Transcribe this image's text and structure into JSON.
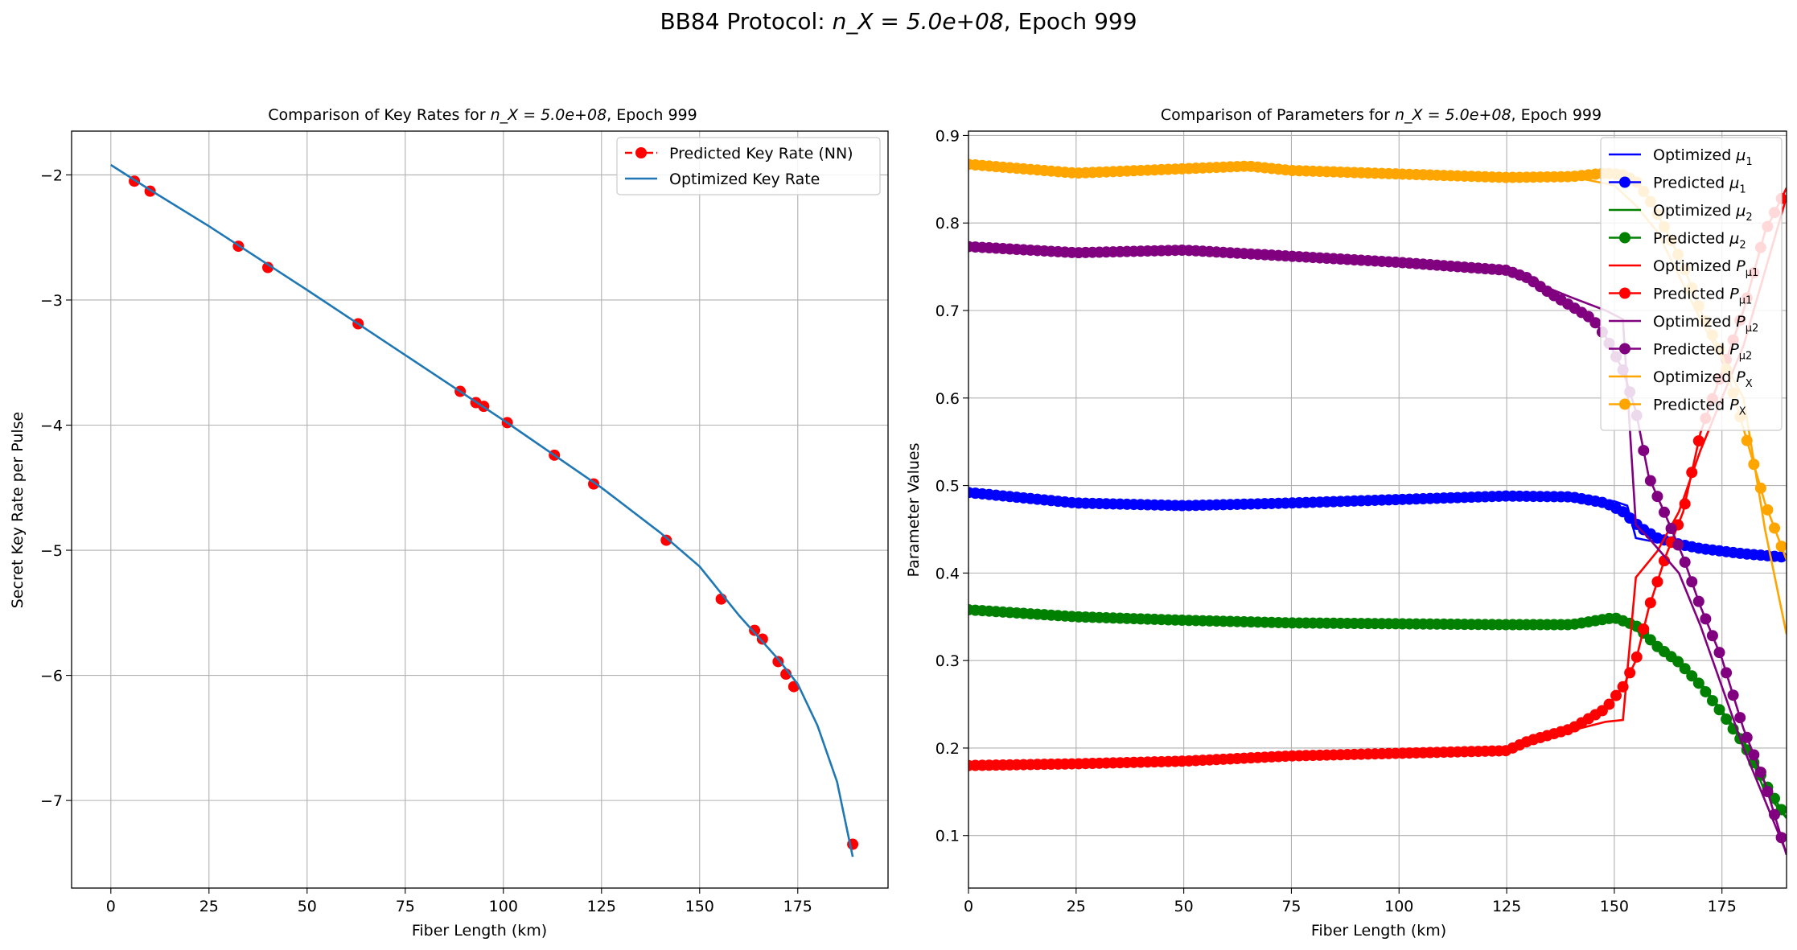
{
  "figure": {
    "suptitle_prefix": "BB84 Protocol: ",
    "suptitle_math": "n_X = 5.0e+08",
    "suptitle_suffix": ", Epoch 999"
  },
  "chart_data": [
    {
      "type": "line",
      "title_prefix": "Comparison of Key Rates for ",
      "title_math": "n_X = 5.0e+08",
      "title_suffix": ", Epoch 999",
      "xlabel": "Fiber Length (km)",
      "ylabel": "Secret Key Rate per Pulse",
      "xlim": [
        -10,
        198
      ],
      "ylim": [
        -7.7,
        -1.65
      ],
      "xticks": [
        0,
        25,
        50,
        75,
        100,
        125,
        150,
        175
      ],
      "yticks": [
        -7,
        -6,
        -5,
        -4,
        -3,
        -2
      ],
      "ytick_labels": [
        "−7",
        "−6",
        "−5",
        "−4",
        "−3",
        "−2"
      ],
      "grid": true,
      "legend_position": "top-right",
      "series": [
        {
          "name": "Predicted Key Rate (NN)",
          "style": "dashed-markers",
          "color": "#ff0000",
          "x": [
            6,
            10,
            32.5,
            40,
            63,
            89,
            93,
            95,
            101,
            113,
            123,
            141.5,
            155.5,
            164,
            166,
            170,
            172,
            174,
            189
          ],
          "y": [
            -2.05,
            -2.13,
            -2.57,
            -2.74,
            -3.19,
            -3.73,
            -3.82,
            -3.85,
            -3.98,
            -4.24,
            -4.47,
            -4.92,
            -5.39,
            -5.64,
            -5.71,
            -5.89,
            -5.99,
            -6.09,
            -7.35
          ]
        },
        {
          "name": "Optimized Key Rate",
          "style": "line",
          "color": "#1f77b4",
          "x": [
            0,
            10,
            25,
            50,
            75,
            100,
            125,
            140,
            150,
            160,
            170,
            175,
            180,
            185,
            188,
            189
          ],
          "y": [
            -1.92,
            -2.12,
            -2.41,
            -2.92,
            -3.44,
            -3.96,
            -4.5,
            -4.86,
            -5.13,
            -5.52,
            -5.87,
            -6.07,
            -6.4,
            -6.85,
            -7.3,
            -7.45
          ]
        }
      ]
    },
    {
      "type": "line",
      "title_prefix": "Comparison of Parameters for ",
      "title_math": "n_X = 5.0e+08",
      "title_suffix": ", Epoch 999",
      "xlabel": "Fiber Length (km)",
      "ylabel": "Parameter Values",
      "xlim": [
        0,
        190
      ],
      "ylim": [
        0.04,
        0.905
      ],
      "xticks": [
        0,
        25,
        50,
        75,
        100,
        125,
        150,
        175
      ],
      "yticks": [
        0.1,
        0.2,
        0.3,
        0.4,
        0.5,
        0.6,
        0.7,
        0.8,
        0.9
      ],
      "grid": true,
      "legend_position": "top-right",
      "series": [
        {
          "name": "Optimized μ1",
          "label_base": "Optimized ",
          "sym": "μ",
          "sub": "1",
          "style": "line",
          "color": "#0000ff",
          "x": [
            0,
            25,
            50,
            75,
            100,
            125,
            140,
            150,
            153,
            155,
            158,
            165,
            175,
            190
          ],
          "y": [
            0.49,
            0.48,
            0.477,
            0.48,
            0.483,
            0.488,
            0.486,
            0.482,
            0.477,
            0.44,
            0.437,
            0.433,
            0.425,
            0.418
          ]
        },
        {
          "name": "Predicted μ1",
          "label_base": "Predicted ",
          "sym": "μ",
          "sub": "1",
          "style": "markers",
          "color": "#0000ff",
          "x": [
            0,
            25,
            50,
            75,
            100,
            125,
            140,
            148,
            152,
            156,
            160,
            165,
            170,
            175,
            180,
            190
          ],
          "y": [
            0.492,
            0.48,
            0.477,
            0.48,
            0.484,
            0.488,
            0.487,
            0.48,
            0.47,
            0.452,
            0.44,
            0.433,
            0.428,
            0.425,
            0.422,
            0.418
          ]
        },
        {
          "name": "Optimized μ2",
          "label_base": "Optimized ",
          "sym": "μ",
          "sub": "2",
          "style": "line",
          "color": "#008000",
          "x": [
            0,
            25,
            50,
            75,
            100,
            125,
            140,
            150,
            155,
            160,
            170,
            180,
            185,
            190
          ],
          "y": [
            0.358,
            0.35,
            0.346,
            0.343,
            0.342,
            0.341,
            0.341,
            0.349,
            0.335,
            0.315,
            0.275,
            0.21,
            0.15,
            0.12
          ]
        },
        {
          "name": "Predicted μ2",
          "label_base": "Predicted ",
          "sym": "μ",
          "sub": "2",
          "style": "markers",
          "color": "#008000",
          "x": [
            0,
            25,
            50,
            75,
            100,
            125,
            140,
            150,
            155,
            160,
            165,
            170,
            175,
            180,
            185,
            190
          ],
          "y": [
            0.358,
            0.35,
            0.346,
            0.343,
            0.342,
            0.341,
            0.341,
            0.349,
            0.34,
            0.316,
            0.298,
            0.272,
            0.24,
            0.205,
            0.16,
            0.12
          ]
        },
        {
          "name": "Optimized Pμ1",
          "label_base": "Optimized ",
          "sym": "P",
          "sub": "μ1",
          "style": "line",
          "color": "#ff0000",
          "x": [
            0,
            25,
            50,
            75,
            100,
            125,
            130,
            140,
            148,
            152,
            155,
            160,
            165,
            170,
            180,
            190
          ],
          "y": [
            0.18,
            0.182,
            0.185,
            0.19,
            0.193,
            0.197,
            0.205,
            0.22,
            0.23,
            0.232,
            0.395,
            0.425,
            0.47,
            0.54,
            0.66,
            0.83
          ]
        },
        {
          "name": "Predicted Pμ1",
          "label_base": "Predicted ",
          "sym": "P",
          "sub": "μ1",
          "style": "markers",
          "color": "#ff0000",
          "x": [
            0,
            25,
            50,
            75,
            100,
            125,
            130,
            140,
            148,
            152,
            155,
            158,
            162,
            166,
            170,
            175,
            180,
            185,
            190
          ],
          "y": [
            0.18,
            0.182,
            0.185,
            0.191,
            0.194,
            0.197,
            0.208,
            0.222,
            0.245,
            0.27,
            0.3,
            0.36,
            0.42,
            0.47,
            0.56,
            0.63,
            0.7,
            0.79,
            0.84
          ]
        },
        {
          "name": "Optimized Pμ2",
          "label_base": "Optimized ",
          "sym": "P",
          "sub": "μ2",
          "style": "line",
          "color": "#800080",
          "x": [
            0,
            25,
            50,
            75,
            100,
            125,
            130,
            140,
            148,
            152,
            155,
            158,
            165,
            170,
            180,
            190
          ],
          "y": [
            0.772,
            0.767,
            0.769,
            0.762,
            0.755,
            0.745,
            0.735,
            0.715,
            0.7,
            0.69,
            0.455,
            0.44,
            0.4,
            0.34,
            0.2,
            0.08
          ]
        },
        {
          "name": "Predicted Pμ2",
          "label_base": "Predicted ",
          "sym": "P",
          "sub": "μ2",
          "style": "markers",
          "color": "#800080",
          "x": [
            0,
            25,
            50,
            75,
            100,
            125,
            130,
            135,
            140,
            145,
            148,
            152,
            155,
            158,
            162,
            166,
            170,
            175,
            180,
            185,
            190
          ],
          "y": [
            0.773,
            0.766,
            0.769,
            0.762,
            0.755,
            0.746,
            0.737,
            0.72,
            0.705,
            0.69,
            0.67,
            0.632,
            0.585,
            0.51,
            0.465,
            0.418,
            0.362,
            0.302,
            0.222,
            0.16,
            0.078
          ]
        },
        {
          "name": "Optimized PX",
          "label_base": "Optimized ",
          "sym": "P",
          "sub": "X",
          "style": "line",
          "color": "#ffa500",
          "x": [
            0,
            25,
            50,
            65,
            75,
            100,
            125,
            140,
            150,
            155,
            160,
            170,
            180,
            185,
            190
          ],
          "y": [
            0.867,
            0.857,
            0.862,
            0.864,
            0.86,
            0.856,
            0.852,
            0.853,
            0.843,
            0.82,
            0.79,
            0.69,
            0.6,
            0.45,
            0.33
          ]
        },
        {
          "name": "Predicted PX",
          "label_base": "Predicted ",
          "sym": "P",
          "sub": "X",
          "style": "markers",
          "color": "#ffa500",
          "x": [
            0,
            25,
            50,
            65,
            75,
            100,
            125,
            140,
            148,
            152,
            155,
            158,
            162,
            166,
            170,
            175,
            180,
            185,
            190
          ],
          "y": [
            0.867,
            0.857,
            0.862,
            0.865,
            0.86,
            0.856,
            0.852,
            0.853,
            0.857,
            0.855,
            0.848,
            0.828,
            0.792,
            0.752,
            0.7,
            0.65,
            0.565,
            0.48,
            0.415
          ]
        }
      ]
    }
  ]
}
